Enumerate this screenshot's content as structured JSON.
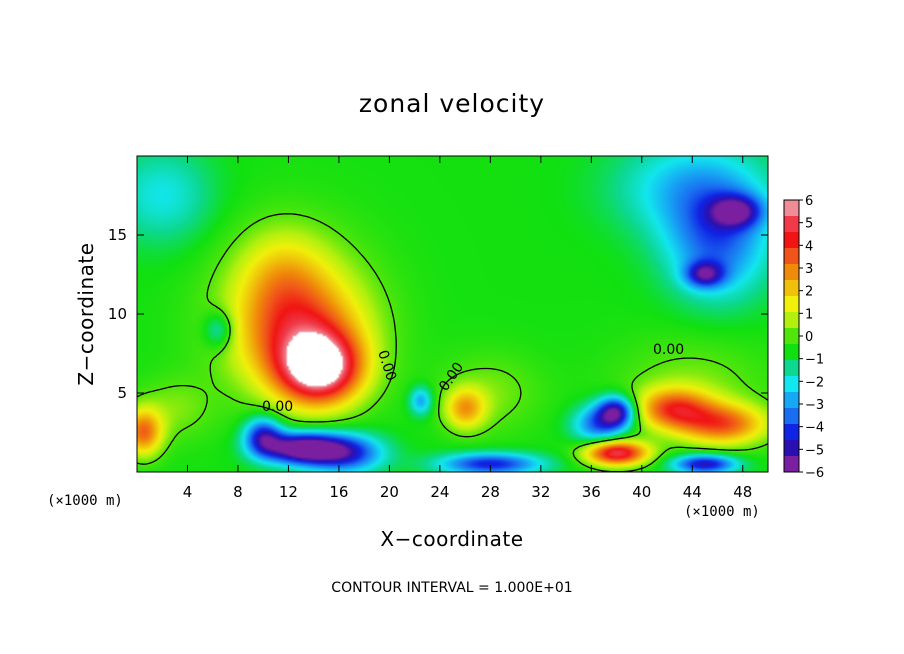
{
  "chart_data": {
    "type": "heatmap",
    "title": "zonal velocity",
    "xlabel": "X−coordinate",
    "ylabel": "Z−coordinate",
    "x_unit_left": "(×1000 m)",
    "x_unit_right": "(×1000 m)",
    "xlim": [
      0,
      50
    ],
    "ylim": [
      0,
      20
    ],
    "x_ticks": [
      4,
      8,
      12,
      16,
      20,
      24,
      28,
      32,
      36,
      40,
      44,
      48
    ],
    "x_tick_labels": [
      "4",
      "8",
      "12",
      "16",
      "20",
      "24",
      "28",
      "32",
      "36",
      "40",
      "44",
      "48"
    ],
    "y_ticks": [
      5,
      10,
      15
    ],
    "y_tick_labels": [
      "5",
      "10",
      "15"
    ],
    "colorbar": {
      "min": -6,
      "max": 6,
      "ticks": [
        6,
        5,
        4,
        3,
        2,
        1,
        0,
        -1,
        -2,
        -3,
        -4,
        -5,
        -6
      ],
      "tick_labels": [
        "6",
        "5",
        "4",
        "3",
        "2",
        "1",
        "0",
        "−1",
        "−2",
        "−3",
        "−4",
        "−5",
        "−6"
      ],
      "colors": [
        "#7a1fa0",
        "#2a10b0",
        "#1024e6",
        "#1a6cf0",
        "#16a8f4",
        "#12e6ee",
        "#0cd890",
        "#10e010",
        "#50e60c",
        "#b4f00e",
        "#f0f00a",
        "#f0c00a",
        "#f08a0a",
        "#f0541a",
        "#f01414",
        "#f03a4a",
        "#f08c96"
      ]
    },
    "contour_labels": [
      "0.00",
      "0.00",
      "0.00",
      "0.00"
    ],
    "contour_interval_text": "CONTOUR INTERVAL = 1.000E+01",
    "features": [
      {
        "x": 14.5,
        "z": 6.5,
        "value": 6.0,
        "sx": 3.2,
        "sz": 2.2
      },
      {
        "x": 13.0,
        "z": 8.5,
        "value": 3.0,
        "sx": 5.0,
        "sz": 3.5
      },
      {
        "x": 12.5,
        "z": 10.0,
        "value": 2.0,
        "sx": 6.0,
        "sz": 5.0
      },
      {
        "x": 11.5,
        "z": 12.5,
        "value": 1.5,
        "sx": 3.5,
        "sz": 3.0
      },
      {
        "x": 42.5,
        "z": 4.0,
        "value": 4.0,
        "sx": 3.0,
        "sz": 1.3
      },
      {
        "x": 46.5,
        "z": 3.0,
        "value": 4.0,
        "sx": 3.5,
        "sz": 1.3
      },
      {
        "x": 44.0,
        "z": 5.5,
        "value": 1.0,
        "sx": 6.0,
        "sz": 3.0
      },
      {
        "x": 26.0,
        "z": 4.0,
        "value": 3.0,
        "sx": 1.6,
        "sz": 1.3
      },
      {
        "x": 28.0,
        "z": 5.0,
        "value": 1.0,
        "sx": 4.0,
        "sz": 2.5
      },
      {
        "x": 38.0,
        "z": 1.2,
        "value": 6.0,
        "sx": 2.5,
        "sz": 0.8
      },
      {
        "x": 0.5,
        "z": 2.5,
        "value": 4.0,
        "sx": 1.5,
        "sz": 1.5
      },
      {
        "x": 3.0,
        "z": 4.0,
        "value": 1.0,
        "sx": 3.0,
        "sz": 2.0
      },
      {
        "x": 13.0,
        "z": 1.5,
        "value": -6.0,
        "sx": 3.0,
        "sz": 1.0
      },
      {
        "x": 10.0,
        "z": 2.3,
        "value": -4.0,
        "sx": 1.5,
        "sz": 1.2
      },
      {
        "x": 16.5,
        "z": 1.2,
        "value": -4.0,
        "sx": 3.0,
        "sz": 1.2
      },
      {
        "x": 38.0,
        "z": 3.8,
        "value": -5.0,
        "sx": 1.5,
        "sz": 1.0
      },
      {
        "x": 36.5,
        "z": 3.0,
        "value": -3.0,
        "sx": 2.0,
        "sz": 1.2
      },
      {
        "x": 22.5,
        "z": 4.5,
        "value": -2.5,
        "sx": 0.9,
        "sz": 0.9
      },
      {
        "x": 6.5,
        "z": 9.0,
        "value": -2.0,
        "sx": 1.2,
        "sz": 1.2
      },
      {
        "x": 45.0,
        "z": 0.5,
        "value": -4.5,
        "sx": 2.5,
        "sz": 0.6
      },
      {
        "x": 28.0,
        "z": 0.5,
        "value": -4.0,
        "sx": 4.0,
        "sz": 0.7
      },
      {
        "x": 46.0,
        "z": 14.5,
        "value": -3.0,
        "sx": 4.0,
        "sz": 3.5
      },
      {
        "x": 47.5,
        "z": 16.5,
        "value": -3.5,
        "sx": 2.0,
        "sz": 1.0
      },
      {
        "x": 45.0,
        "z": 12.5,
        "value": -3.5,
        "sx": 1.5,
        "sz": 0.8
      },
      {
        "x": 44.0,
        "z": 18.0,
        "value": -2.0,
        "sx": 6.0,
        "sz": 3.0
      },
      {
        "x": 2.0,
        "z": 17.5,
        "value": -1.5,
        "sx": 4.0,
        "sz": 3.0
      }
    ],
    "background_value": -0.7
  }
}
